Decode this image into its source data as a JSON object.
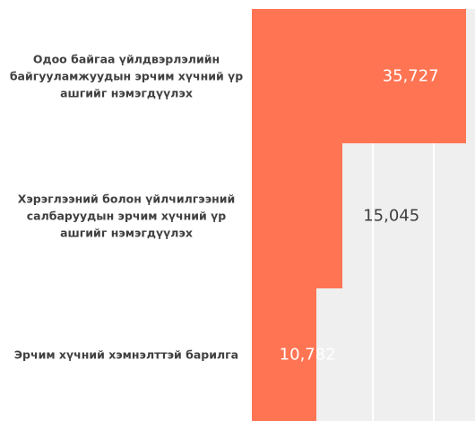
{
  "chart_data": {
    "type": "bar",
    "orientation": "horizontal",
    "categories": [
      "Одоо байгаа үйлдвэрлэлийн байгууламжуудын эрчим хүчний үр ашгийг нэмэгдүүлэх",
      "Хэрэглээний болон үйлчилгээний салбаруудын эрчим хүчний үр ашгийг нэмэгдүүлэх",
      "Эрчим хүчний хэмнэлттэй барилга"
    ],
    "values": [
      35727,
      15045,
      10782
    ],
    "value_labels": [
      "35,727",
      "15,045",
      "10,782"
    ],
    "color": "#ff7554",
    "xlim": [
      0,
      37200
    ]
  }
}
